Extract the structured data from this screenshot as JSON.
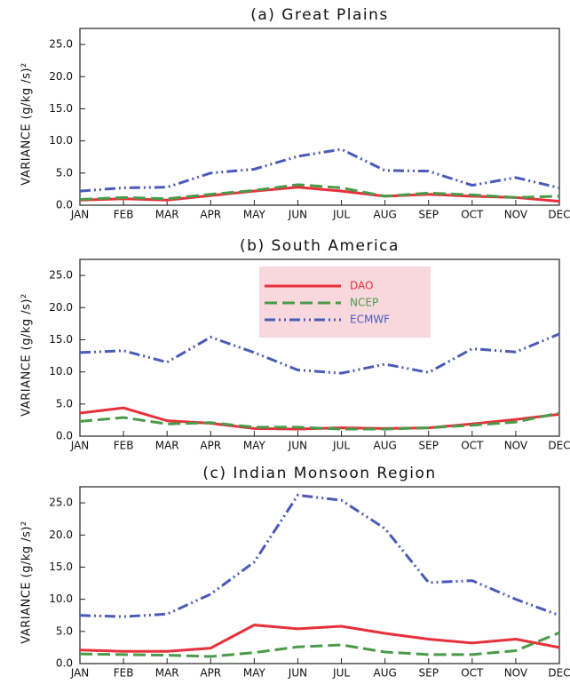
{
  "chart_data": [
    {
      "type": "line",
      "title": "(a) Great Plains",
      "y_label": "VARIANCE (g/kg /s)²",
      "categories": [
        "JAN",
        "FEB",
        "MAR",
        "APR",
        "MAY",
        "JUN",
        "JUL",
        "AUG",
        "SEP",
        "OCT",
        "NOV",
        "DEC"
      ],
      "ylim": [
        0,
        27.5
      ],
      "yticks": [
        {
          "value": 0,
          "label": "0.0"
        },
        {
          "value": 5,
          "label": "5.0"
        },
        {
          "value": 10,
          "label": "10.0"
        },
        {
          "value": 15,
          "label": "15.0"
        },
        {
          "value": 20,
          "label": "20.0"
        },
        {
          "value": 25,
          "label": "25.0"
        }
      ],
      "series": [
        {
          "name": "DAO",
          "color": "#e8303a",
          "line_style": "solid",
          "values": [
            0.8,
            1.0,
            0.8,
            1.5,
            2.2,
            2.8,
            2.2,
            1.4,
            1.7,
            1.4,
            1.2,
            0.6
          ]
        },
        {
          "name": "NCEP",
          "color": "#4a9a4a",
          "line_style": "dashed",
          "values": [
            0.9,
            1.2,
            1.0,
            1.7,
            2.3,
            3.2,
            2.7,
            1.4,
            1.9,
            1.6,
            1.2,
            1.4
          ]
        },
        {
          "name": "ECMWF",
          "color": "#4a5ab8",
          "line_style": "dashdotdot",
          "values": [
            2.2,
            2.7,
            2.8,
            5.0,
            5.6,
            7.6,
            8.7,
            5.4,
            5.3,
            3.1,
            4.3,
            2.7
          ]
        }
      ]
    },
    {
      "type": "line",
      "title": "(b) South America",
      "y_label": "VARIANCE (g/kg /s)²",
      "categories": [
        "JAN",
        "FEB",
        "MAR",
        "APR",
        "MAY",
        "JUN",
        "JUL",
        "AUG",
        "SEP",
        "OCT",
        "NOV",
        "DEC"
      ],
      "ylim": [
        0,
        27.5
      ],
      "yticks": [
        {
          "value": 0,
          "label": "0.0"
        },
        {
          "value": 5,
          "label": "5.0"
        },
        {
          "value": 10,
          "label": "10.0"
        },
        {
          "value": 15,
          "label": "15.0"
        },
        {
          "value": 20,
          "label": "20.0"
        },
        {
          "value": 25,
          "label": "25.0"
        }
      ],
      "legend": "upper center",
      "series": [
        {
          "name": "DAO",
          "color": "#e8303a",
          "line_style": "solid",
          "values": [
            3.6,
            4.4,
            2.4,
            2.0,
            1.2,
            1.1,
            1.3,
            1.2,
            1.3,
            1.9,
            2.6,
            3.4
          ]
        },
        {
          "name": "NCEP",
          "color": "#4a9a4a",
          "line_style": "dashed",
          "values": [
            2.3,
            2.9,
            1.9,
            2.1,
            1.4,
            1.4,
            1.1,
            1.1,
            1.3,
            1.7,
            2.2,
            3.6
          ]
        },
        {
          "name": "ECMWF",
          "color": "#4a5ab8",
          "line_style": "dashdotdot",
          "values": [
            13.0,
            13.3,
            11.5,
            15.4,
            13.0,
            10.3,
            9.8,
            11.2,
            9.9,
            13.6,
            13.1,
            15.9
          ]
        }
      ]
    },
    {
      "type": "line",
      "title": "(c) Indian Monsoon Region",
      "y_label": "VARIANCE (g/kg /s)²",
      "categories": [
        "JAN",
        "FEB",
        "MAR",
        "APR",
        "MAY",
        "JUN",
        "JUL",
        "AUG",
        "SEP",
        "OCT",
        "NOV",
        "DEC"
      ],
      "ylim": [
        0,
        27.5
      ],
      "yticks": [
        {
          "value": 0,
          "label": "0.0"
        },
        {
          "value": 5,
          "label": "5.0"
        },
        {
          "value": 10,
          "label": "10.0"
        },
        {
          "value": 15,
          "label": "15.0"
        },
        {
          "value": 20,
          "label": "20.0"
        },
        {
          "value": 25,
          "label": "25.0"
        }
      ],
      "series": [
        {
          "name": "DAO",
          "color": "#e8303a",
          "line_style": "solid",
          "values": [
            2.1,
            1.9,
            1.9,
            2.4,
            6.0,
            5.4,
            5.8,
            4.7,
            3.8,
            3.2,
            3.8,
            2.5
          ]
        },
        {
          "name": "NCEP",
          "color": "#4a9a4a",
          "line_style": "dashed",
          "values": [
            1.5,
            1.4,
            1.3,
            1.1,
            1.7,
            2.6,
            2.9,
            1.8,
            1.4,
            1.4,
            2.0,
            4.8
          ]
        },
        {
          "name": "ECMWF",
          "color": "#4a5ab8",
          "line_style": "dashdotdot",
          "values": [
            7.5,
            7.3,
            7.7,
            10.8,
            15.8,
            26.2,
            25.4,
            21.0,
            12.6,
            12.9,
            10.0,
            7.5
          ]
        }
      ]
    }
  ]
}
